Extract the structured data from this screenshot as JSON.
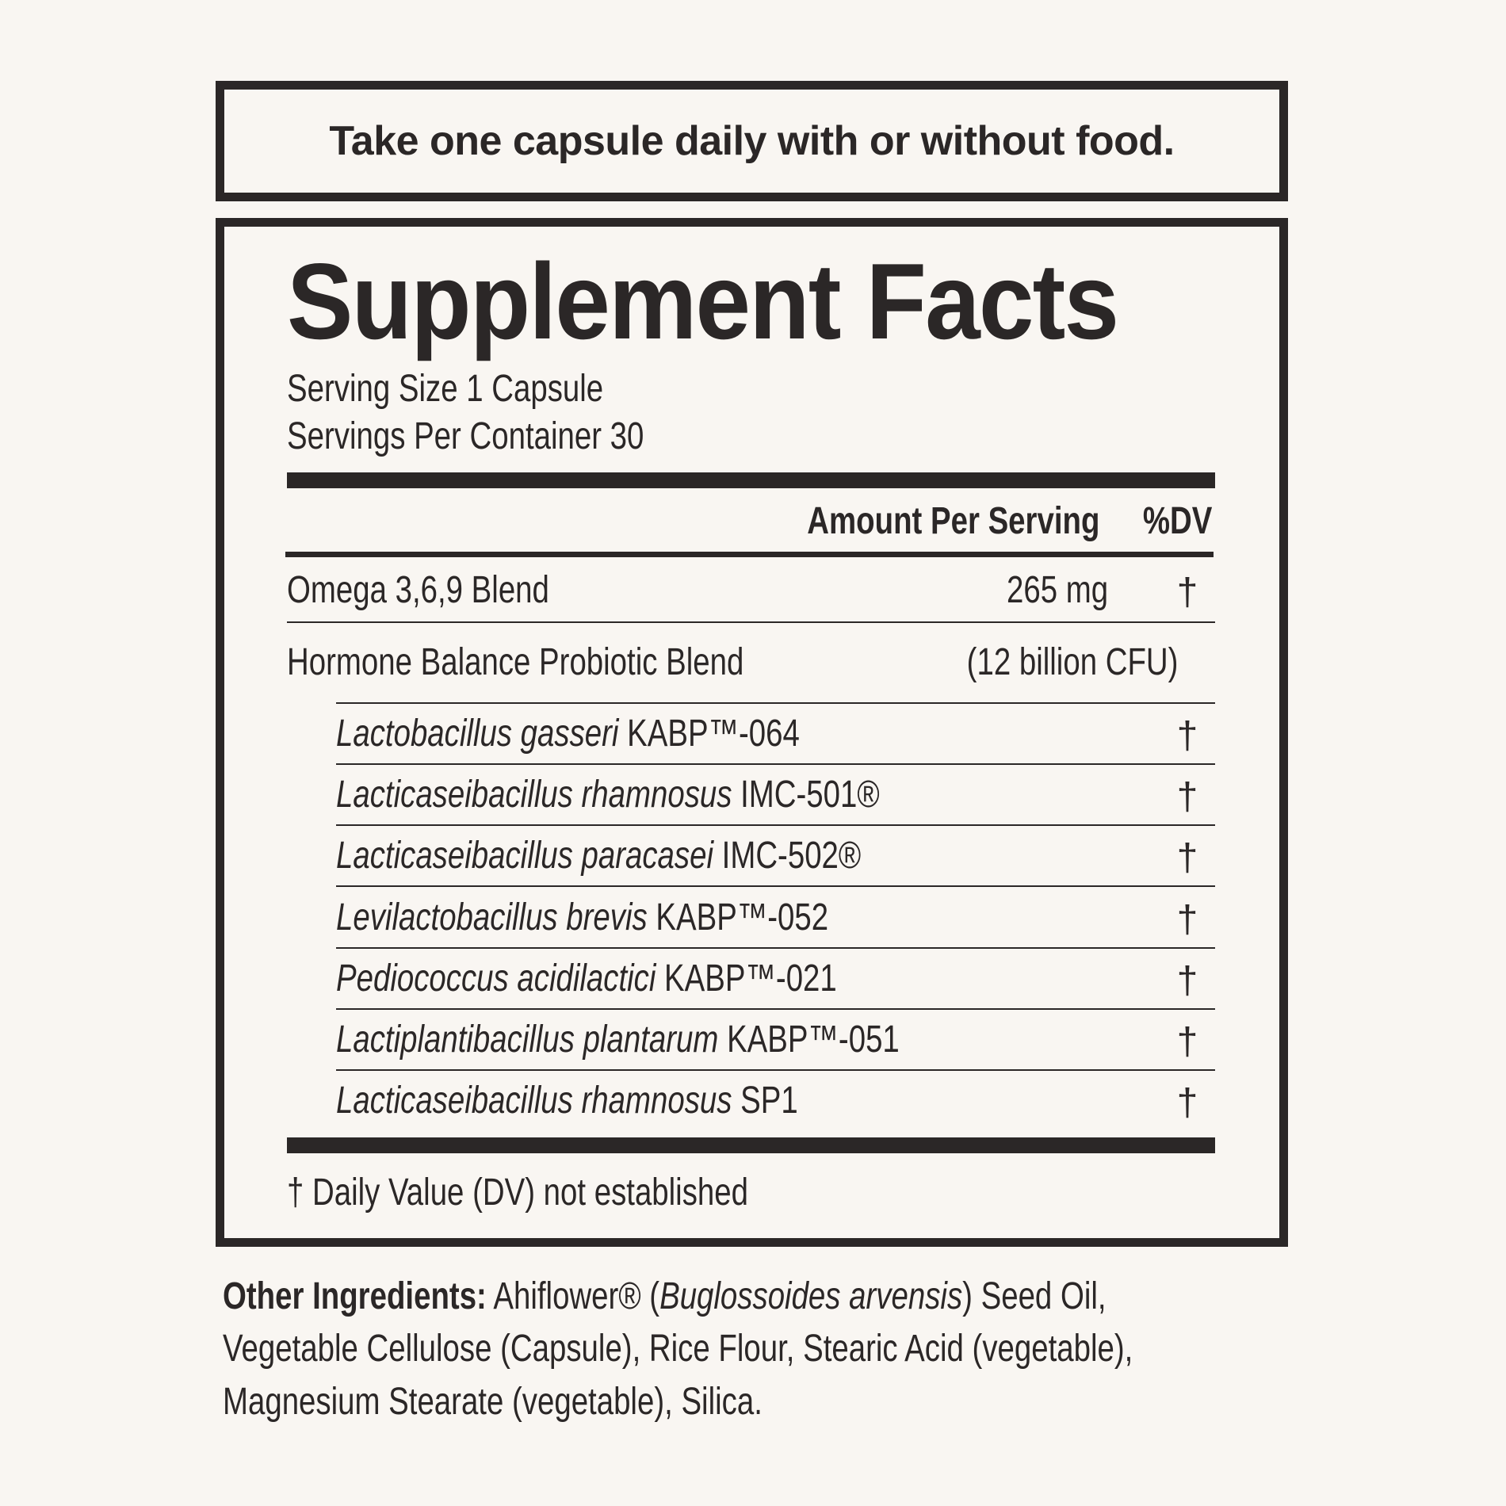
{
  "directions": "Take one capsule daily with or without food.",
  "facts": {
    "title": "Supplement Facts",
    "serving_size": "Serving Size 1 Capsule",
    "servings_per_container": "Servings Per Container 30",
    "header_amount": "Amount Per Serving",
    "header_dv": "%DV",
    "rows": [
      {
        "name": "Omega 3,6,9 Blend",
        "amount": "265 mg",
        "dv": "†"
      },
      {
        "name": "Hormone Balance Probiotic Blend",
        "amount": "(12 billion CFU)",
        "dv": ""
      }
    ],
    "strains": [
      {
        "species": "Lactobacillus gasseri",
        "strain": " KABP™-064",
        "dv": "†"
      },
      {
        "species": "Lacticaseibacillus rhamnosus",
        "strain": " IMC-501®",
        "dv": "†"
      },
      {
        "species": "Lacticaseibacillus paracasei",
        "strain": " IMC-502®",
        "dv": "†"
      },
      {
        "species": "Levilactobacillus brevis",
        "strain": " KABP™-052",
        "dv": "†"
      },
      {
        "species": "Pediococcus acidilactici",
        "strain": " KABP™-021",
        "dv": "†"
      },
      {
        "species": "Lactiplantibacillus plantarum",
        "strain": " KABP™-051",
        "dv": "†"
      },
      {
        "species": "Lacticaseibacillus rhamnosus",
        "strain": " SP1",
        "dv": "†"
      }
    ],
    "footnote": "† Daily Value (DV) not established"
  },
  "other_ingredients": {
    "label": "Other Ingredients:",
    "part1": " Ahiflower® (",
    "italic": "Buglossoides arvensis",
    "part2": ") Seed Oil,",
    "line2": "Vegetable Cellulose (Capsule), Rice Flour, Stearic Acid (vegetable),",
    "line3": "Magnesium Stearate (vegetable), Silica."
  }
}
